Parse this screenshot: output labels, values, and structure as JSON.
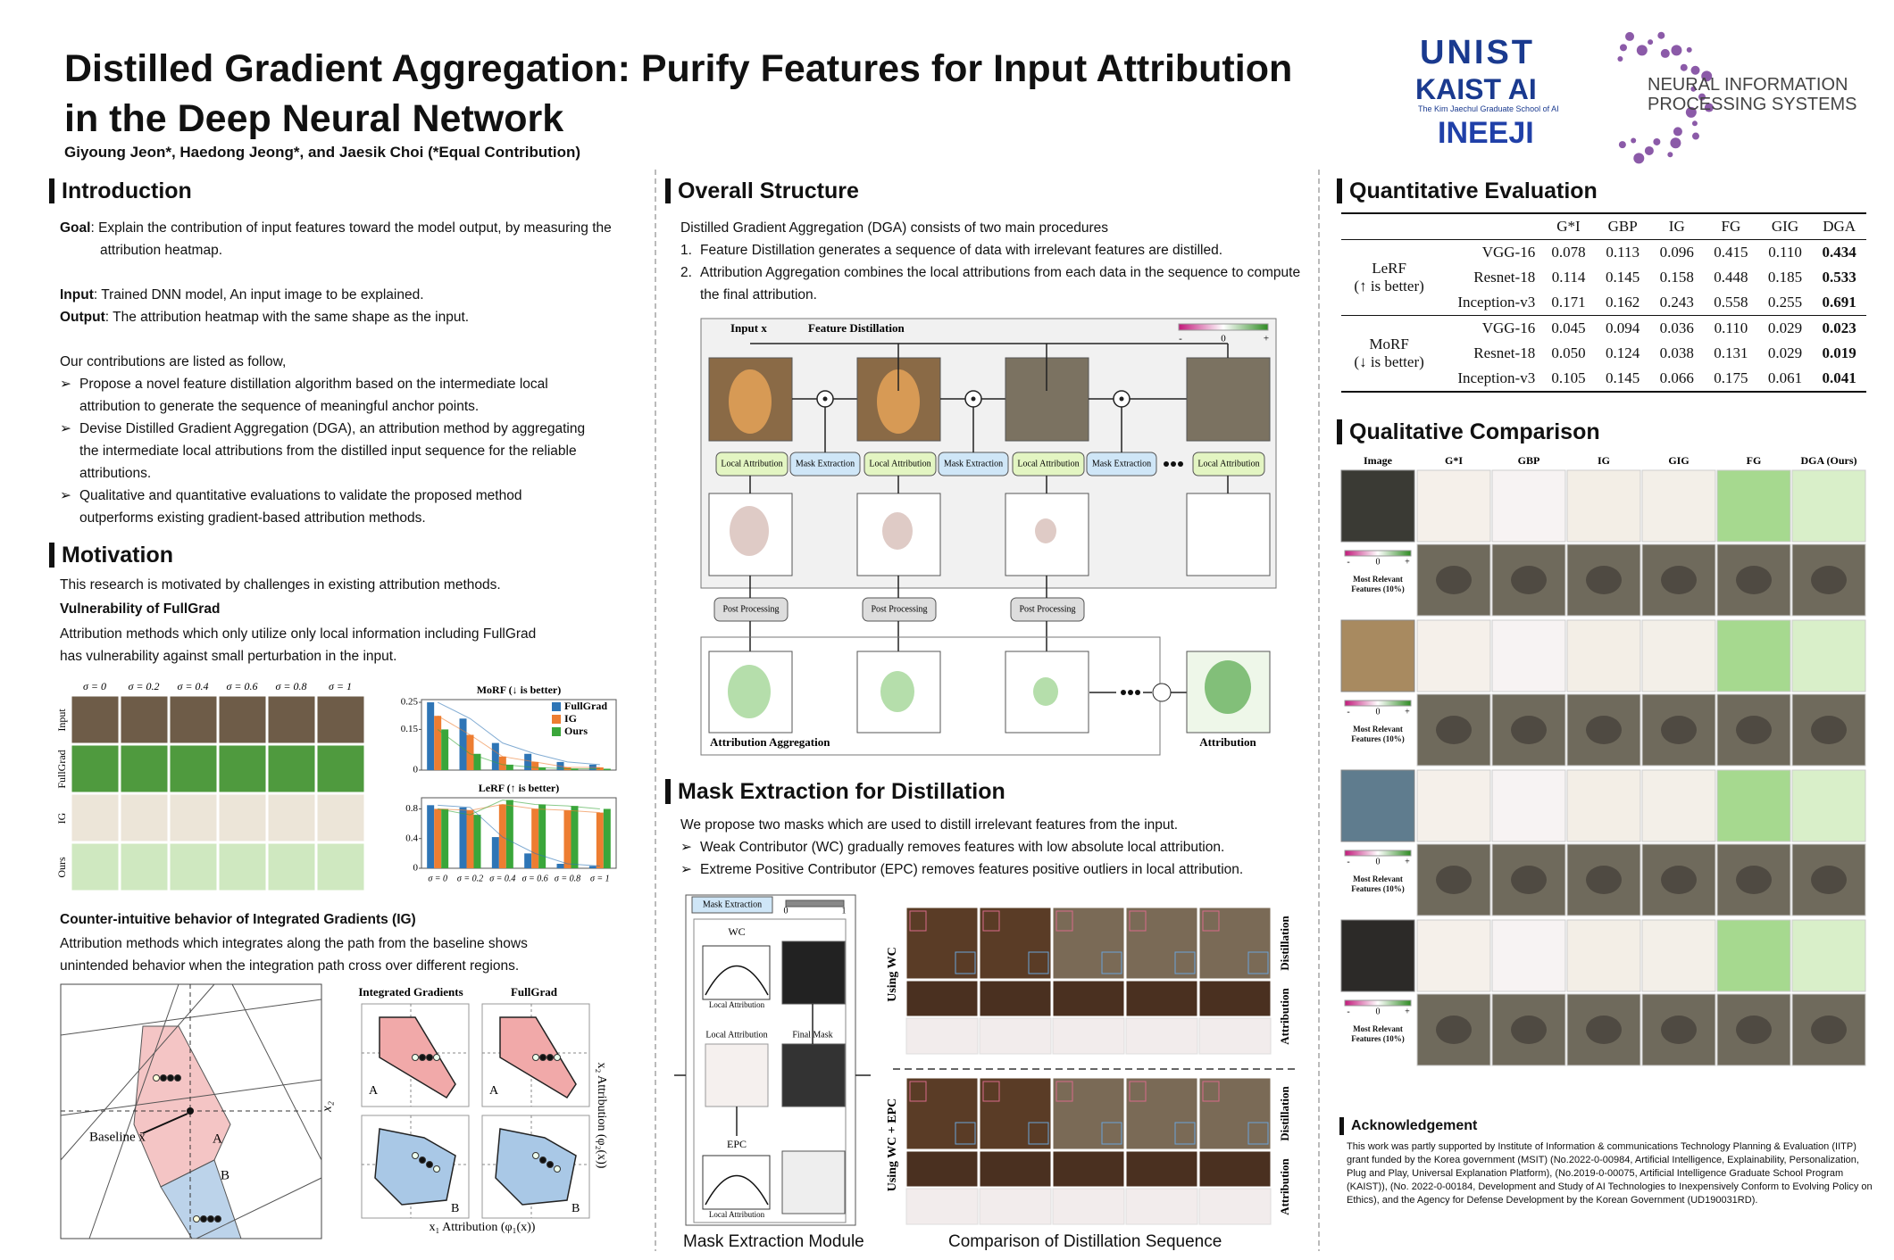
{
  "header": {
    "title_line1": "Distilled Gradient Aggregation: Purify Features for Input Attribution",
    "title_line2": "in the Deep Neural Network",
    "authors": "Giyoung Jeon*, Haedong Jeong*, and Jaesik Choi (*Equal Contribution)",
    "logo_unist": "UNIST",
    "logo_kaist": "KAIST AI",
    "logo_kaist_sub": "The Kim Jaechul Graduate School of AI",
    "logo_ineeji": "INEEJI",
    "logo_neurips_1": "NEURAL INFORMATION",
    "logo_neurips_2": "PROCESSING SYSTEMS"
  },
  "introduction": {
    "heading": "Introduction",
    "goal_label": "Goal",
    "goal": ": Explain the contribution of input features toward the model output, by measuring the attribution heatmap.",
    "input_label": "Input",
    "input": ": Trained DNN model, An input image to be explained.",
    "output_label": "Output",
    "output": ": The attribution heatmap with the same shape as the input.",
    "contributions_intro": "Our contributions are listed as follow,",
    "contributions": [
      "Propose a novel feature distillation algorithm based on the intermediate local attribution to generate the sequence of meaningful anchor points.",
      "Devise Distilled Gradient Aggregation (DGA), an attribution method by aggregating the intermediate local attributions from the distilled input sequence for the reliable attributions.",
      "Qualitative and quantitative evaluations to validate the proposed method outperforms existing gradient-based attribution methods."
    ]
  },
  "motivation": {
    "heading": "Motivation",
    "intro": "This research is motivated by challenges in existing attribution methods.",
    "sub1": "Vulnerability of FullGrad",
    "sub1_text": "Attribution methods which only utilize only local information including FullGrad has vulnerability against small perturbation in the input.",
    "row_labels": [
      "Input",
      "FullGrad",
      "IG",
      "Ours"
    ],
    "sub2": "Counter-intuitive behavior of Integrated Gradients (IG)",
    "sub2_text": "Attribution methods which integrates along the path from the baseline shows unintended behavior when the integration path cross over different regions.",
    "baseline_label": "Baseline x̄",
    "region_a": "A",
    "region_b": "B",
    "axis_x2": "x₂",
    "panel_ig": "Integrated Gradients",
    "panel_fg": "FullGrad",
    "x_attr_label": "x₁ Attribution (φ₁(x))",
    "y_attr_label": "x₂ Attribution (φ₂(x))"
  },
  "chart_data": [
    {
      "type": "bar",
      "title": "MoRF (↓ is better)",
      "categories": [
        "σ = 0",
        "σ = 0.2",
        "σ = 0.4",
        "σ = 0.6",
        "σ = 0.8",
        "σ = 1"
      ],
      "series": [
        {
          "name": "FullGrad",
          "color": "#2e75b6",
          "values": [
            0.25,
            0.19,
            0.1,
            0.06,
            0.03,
            0.02
          ]
        },
        {
          "name": "IG",
          "color": "#ed7d31",
          "values": [
            0.2,
            0.13,
            0.05,
            0.03,
            0.01,
            0.01
          ]
        },
        {
          "name": "Ours",
          "color": "#3aa63a",
          "values": [
            0.15,
            0.06,
            0.02,
            0.01,
            0.005,
            0.005
          ]
        }
      ],
      "ylim": [
        0,
        0.26
      ],
      "yticks": [
        0,
        0.15,
        0.25
      ],
      "legend": "upper right"
    },
    {
      "type": "bar",
      "title": "LeRF (↑ is better)",
      "categories": [
        "σ = 0",
        "σ = 0.2",
        "σ = 0.4",
        "σ = 0.6",
        "σ = 0.8",
        "σ = 1"
      ],
      "series": [
        {
          "name": "FullGrad",
          "color": "#2e75b6",
          "values": [
            0.85,
            0.82,
            0.42,
            0.2,
            0.06,
            0.03
          ]
        },
        {
          "name": "IG",
          "color": "#ed7d31",
          "values": [
            0.8,
            0.78,
            0.86,
            0.8,
            0.78,
            0.75
          ]
        },
        {
          "name": "Ours",
          "color": "#3aa63a",
          "values": [
            0.8,
            0.72,
            0.92,
            0.86,
            0.84,
            0.8
          ]
        }
      ],
      "ylim": [
        0,
        0.95
      ],
      "yticks": [
        0,
        0.4,
        0.8
      ]
    }
  ],
  "overall_structure": {
    "heading": "Overall Structure",
    "intro": "Distilled Gradient Aggregation (DGA) consists of two main procedures",
    "steps": [
      "Feature Distillation generates a sequence of data with irrelevant features are distilled.",
      "Attribution Aggregation combines the local attributions from each data in the sequence to compute the final attribution."
    ],
    "input_label": "Input x",
    "distillation_label": "Feature Distillation",
    "local_attribution": "Local Attribution",
    "mask_extraction": "Mask Extraction",
    "post_processing": "Post Processing",
    "aggregation_label": "Attribution Aggregation",
    "output_label": "Attribution",
    "scale_min": "-",
    "scale_mid": "0",
    "scale_max": "+"
  },
  "mask_extraction": {
    "heading": "Mask Extraction for Distillation",
    "intro": "We propose two masks which are used to distill irrelevant features from the input.",
    "bullets": [
      "Weak Contributor (WC) gradually removes features with low absolute local attribution.",
      "Extreme Positive Contributor (EPC) removes features positive outliers in local attribution."
    ],
    "module_title": "Mask Extraction",
    "scale_min": "0",
    "scale_max": "1",
    "wc": "WC",
    "epc": "EPC",
    "local_attribution": "Local Attribution",
    "final_mask": "Final Mask",
    "module_caption": "Mask Extraction Module",
    "using_wc": "Using WC",
    "using_wc_epc": "Using WC + EPC",
    "distillation": "Distillation",
    "attribution": "Attribution",
    "comparison_caption": "Comparison of Distillation Sequence"
  },
  "quantitative": {
    "heading": "Quantitative Evaluation",
    "columns": [
      "G*I",
      "GBP",
      "IG",
      "FG",
      "GIG",
      "DGA"
    ],
    "groups": [
      {
        "name": "LeRF",
        "note": "(↑ is better)",
        "rows": [
          {
            "model": "VGG-16",
            "values": [
              "0.078",
              "0.113",
              "0.096",
              "0.415",
              "0.110",
              "0.434"
            ]
          },
          {
            "model": "Resnet-18",
            "values": [
              "0.114",
              "0.145",
              "0.158",
              "0.448",
              "0.185",
              "0.533"
            ]
          },
          {
            "model": "Inception-v3",
            "values": [
              "0.171",
              "0.162",
              "0.243",
              "0.558",
              "0.255",
              "0.691"
            ]
          }
        ]
      },
      {
        "name": "MoRF",
        "note": "(↓ is better)",
        "rows": [
          {
            "model": "VGG-16",
            "values": [
              "0.045",
              "0.094",
              "0.036",
              "0.110",
              "0.029",
              "0.023"
            ]
          },
          {
            "model": "Resnet-18",
            "values": [
              "0.050",
              "0.124",
              "0.038",
              "0.131",
              "0.029",
              "0.019"
            ]
          },
          {
            "model": "Inception-v3",
            "values": [
              "0.105",
              "0.145",
              "0.066",
              "0.175",
              "0.061",
              "0.041"
            ]
          }
        ]
      }
    ]
  },
  "qualitative": {
    "heading": "Qualitative Comparison",
    "columns": [
      "Image",
      "G*I",
      "GBP",
      "IG",
      "GIG",
      "FG",
      "DGA (Ours)"
    ],
    "features_label": "Most Relevant Features (10%)",
    "scale_min": "-",
    "scale_mid": "0",
    "scale_max": "+"
  },
  "acknowledgement": {
    "heading": "Acknowledgement",
    "text": "This work was partly supported by Institute of Information & communications Technology Planning & Evaluation (IITP) grant funded by the Korea government (MSIT) (No.2022-0-00984, Artificial Intelligence, Explainability, Personalization, Plug and Play, Universal Explanation Platform), (No.2019-0-00075, Artificial Intelligence Graduate School Program (KAIST)), (No. 2022-0-00184, Development and Study of AI Technologies to Inexpensively Conform to Evolving Policy on Ethics), and the Agency for Defense Development by the Korean Government (UD190031RD)."
  }
}
